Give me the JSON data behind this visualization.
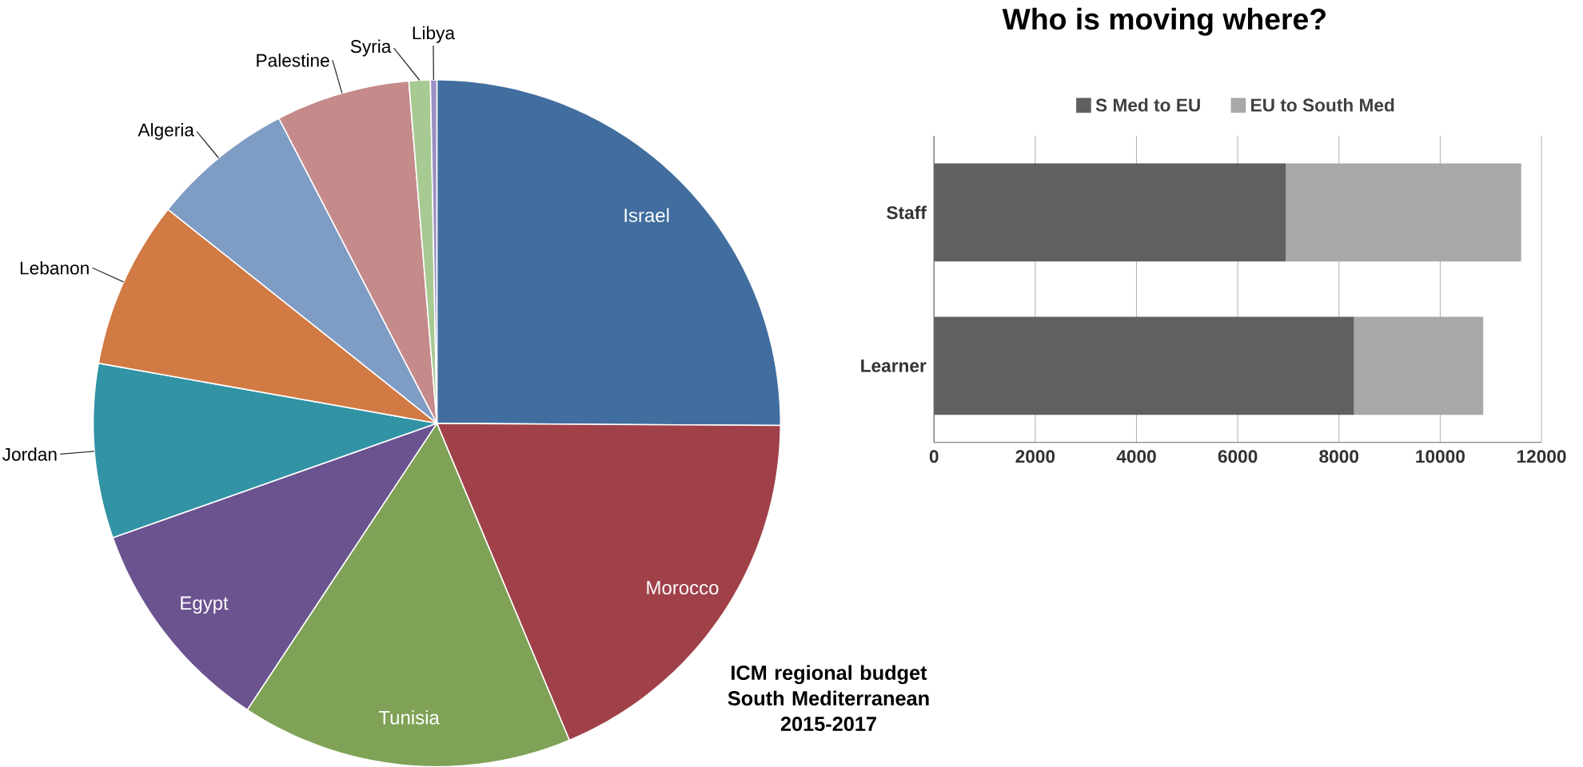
{
  "chart_data": [
    {
      "type": "pie",
      "title": "ICM regional budget South Mediterranean 2015-2017",
      "categories": [
        "Israel",
        "Morocco",
        "Tunisia",
        "Egypt",
        "Jordan",
        "Lebanon",
        "Algeria",
        "Palestine",
        "Syria",
        "Libya"
      ],
      "values": [
        25.1,
        18.6,
        15.6,
        10.3,
        8.2,
        7.9,
        6.7,
        6.3,
        1.0,
        0.3
      ],
      "colors": [
        "#416e9f",
        "#a0414a",
        "#7fa256",
        "#6b5390",
        "#3293a5",
        "#d17a44",
        "#7f9cc4",
        "#c58a8a",
        "#a7c992",
        "#9b8fc1"
      ]
    },
    {
      "type": "bar",
      "orientation": "horizontal",
      "stacked": true,
      "title": "Who is moving where?",
      "categories": [
        "Staff",
        "Learner"
      ],
      "series": [
        {
          "name": "S Med to EU",
          "color": "#5f6062",
          "values": [
            6950,
            8300
          ]
        },
        {
          "name": "EU to South Med",
          "color": "#a6a8a9",
          "values": [
            4650,
            2550
          ]
        }
      ],
      "xlim": [
        0,
        12000
      ],
      "xticks": [
        0,
        2000,
        4000,
        6000,
        8000,
        10000,
        12000
      ],
      "grid": "x",
      "legend": "top"
    }
  ]
}
